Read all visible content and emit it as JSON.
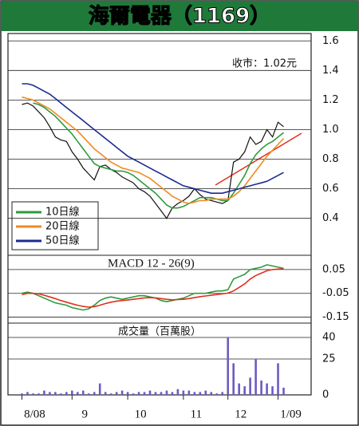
{
  "title": "海爾電器（1169）",
  "chart_data": [
    {
      "type": "line",
      "annotation": "收市：1.02元",
      "legend": "lower-left",
      "grid": true,
      "ylim": [
        0.15,
        1.65
      ],
      "yticks": [
        0.4,
        0.6,
        0.8,
        {
          "value": 1,
          "label": "1.0"
        },
        1.2,
        1.4,
        1.6
      ],
      "series": [
        {
          "name": "收市",
          "color": "#111111",
          "values": [
            1.17,
            1.18,
            1.16,
            1.12,
            1.08,
            1.02,
            0.95,
            0.93,
            0.92,
            0.85,
            0.8,
            0.74,
            0.7,
            0.66,
            0.75,
            0.76,
            0.73,
            0.71,
            0.68,
            0.66,
            0.64,
            0.6,
            0.58,
            0.55,
            0.5,
            0.45,
            0.4,
            0.47,
            0.5,
            0.52,
            0.55,
            0.6,
            0.56,
            0.53,
            0.52,
            0.51,
            0.5,
            0.52,
            0.78,
            0.8,
            0.85,
            0.95,
            0.9,
            0.92,
            1.0,
            0.95,
            1.05,
            1.02
          ]
        },
        {
          "name": "10日線",
          "color": "#2e9a3e",
          "values": [
            null,
            null,
            1.18,
            1.17,
            1.15,
            1.12,
            1.09,
            1.05,
            1.01,
            0.97,
            0.92,
            0.87,
            0.82,
            0.77,
            0.75,
            0.74,
            0.73,
            0.72,
            0.72,
            0.71,
            0.69,
            0.66,
            0.63,
            0.6,
            0.57,
            0.53,
            0.49,
            0.47,
            0.47,
            0.48,
            0.5,
            0.52,
            0.54,
            0.54,
            0.54,
            0.53,
            0.52,
            0.52,
            0.57,
            0.63,
            0.69,
            0.77,
            0.83,
            0.87,
            0.9,
            0.92,
            0.95,
            0.98
          ]
        },
        {
          "name": "20日線",
          "color": "#f08a24",
          "values": [
            1.22,
            1.21,
            1.2,
            1.18,
            1.16,
            1.14,
            1.11,
            1.08,
            1.05,
            1.02,
            0.99,
            0.95,
            0.91,
            0.87,
            0.84,
            0.81,
            0.78,
            0.76,
            0.74,
            0.73,
            0.72,
            0.71,
            0.69,
            0.67,
            0.64,
            0.61,
            0.58,
            0.55,
            0.53,
            0.51,
            0.5,
            0.51,
            0.52,
            0.52,
            0.53,
            0.53,
            0.53,
            0.53,
            0.55,
            0.58,
            0.62,
            0.67,
            0.72,
            0.77,
            0.82,
            0.86,
            0.9,
            0.94
          ]
        },
        {
          "name": "50日線",
          "color": "#1c2a8e",
          "values": [
            1.31,
            1.31,
            1.3,
            1.28,
            1.26,
            1.24,
            1.21,
            1.18,
            1.15,
            1.12,
            1.09,
            1.06,
            1.03,
            1.0,
            0.97,
            0.94,
            0.91,
            0.88,
            0.85,
            0.82,
            0.8,
            0.78,
            0.76,
            0.74,
            0.72,
            0.7,
            0.68,
            0.66,
            0.64,
            0.62,
            0.61,
            0.6,
            0.59,
            0.58,
            0.57,
            0.57,
            0.57,
            0.58,
            0.59,
            0.6,
            0.61,
            0.62,
            0.63,
            0.64,
            0.65,
            0.67,
            0.69,
            0.71
          ]
        }
      ]
    },
    {
      "type": "line",
      "title": "MACD 12 - 26(9)",
      "grid": true,
      "ylim": [
        -0.175,
        0.11
      ],
      "yticks": [
        -0.15,
        -0.05,
        0.05
      ],
      "series": [
        {
          "color": "#2e9a3e",
          "values": [
            -0.05,
            -0.045,
            -0.05,
            -0.06,
            -0.07,
            -0.08,
            -0.09,
            -0.095,
            -0.1,
            -0.11,
            -0.115,
            -0.12,
            -0.115,
            -0.1,
            -0.08,
            -0.07,
            -0.065,
            -0.07,
            -0.075,
            -0.07,
            -0.065,
            -0.06,
            -0.06,
            -0.065,
            -0.07,
            -0.08,
            -0.085,
            -0.08,
            -0.075,
            -0.07,
            -0.06,
            -0.05,
            -0.05,
            -0.05,
            -0.045,
            -0.04,
            -0.04,
            -0.035,
            0.01,
            0.02,
            0.03,
            0.05,
            0.055,
            0.06,
            0.07,
            0.065,
            0.06,
            0.055
          ]
        },
        {
          "color": "#e0301e",
          "values": [
            -0.055,
            -0.05,
            -0.05,
            -0.052,
            -0.058,
            -0.065,
            -0.072,
            -0.08,
            -0.087,
            -0.094,
            -0.1,
            -0.105,
            -0.108,
            -0.106,
            -0.1,
            -0.093,
            -0.087,
            -0.083,
            -0.08,
            -0.078,
            -0.075,
            -0.072,
            -0.069,
            -0.068,
            -0.069,
            -0.072,
            -0.075,
            -0.077,
            -0.076,
            -0.075,
            -0.072,
            -0.068,
            -0.064,
            -0.061,
            -0.058,
            -0.055,
            -0.052,
            -0.049,
            -0.04,
            -0.025,
            -0.01,
            0.01,
            0.025,
            0.035,
            0.045,
            0.05,
            0.052,
            0.053
          ]
        }
      ]
    },
    {
      "type": "bar",
      "title": "成交量（百萬股）",
      "grid": true,
      "color": "#6a5cc4",
      "ylim": [
        0,
        50
      ],
      "yticks": [
        0,
        25,
        40
      ],
      "values": [
        1,
        2,
        1,
        1,
        3,
        2,
        2,
        1,
        2,
        3,
        2,
        3,
        1,
        2,
        8,
        2,
        1,
        2,
        3,
        2,
        1,
        2,
        2,
        3,
        2,
        2,
        3,
        2,
        4,
        3,
        3,
        2,
        2,
        3,
        2,
        1,
        2,
        40,
        22,
        8,
        6,
        12,
        25,
        10,
        8,
        6,
        22,
        5
      ],
      "xlim": [
        -0.5,
        47.5
      ],
      "xticks": [
        {
          "value": 0,
          "label": "8/08"
        },
        {
          "value": 9,
          "label": "9"
        },
        {
          "value": 19,
          "label": "10"
        },
        {
          "value": 29,
          "label": "11"
        },
        {
          "value": 37,
          "label": "12"
        },
        {
          "value": 46,
          "label": "1/09"
        }
      ]
    }
  ]
}
